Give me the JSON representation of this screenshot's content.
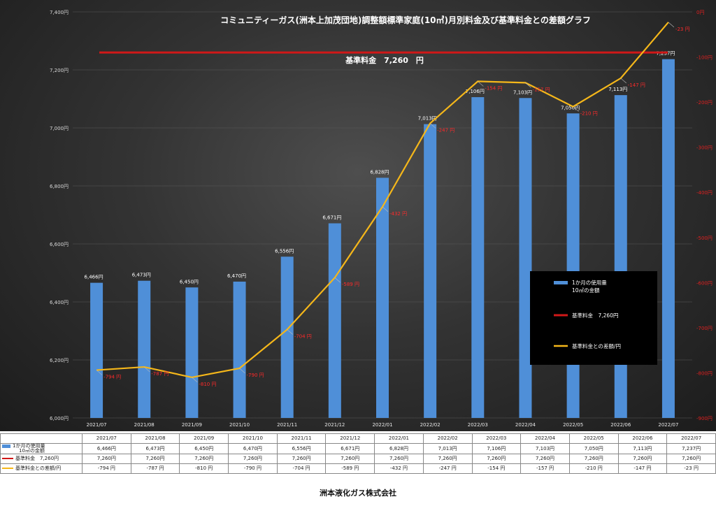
{
  "chart_data": {
    "type": "bar",
    "title": "コミュニティーガス(洲本上加茂団地)調整額標準家庭(10㎥)月別料金及び基準料金との差額グラフ",
    "categories": [
      "2021/07",
      "2021/08",
      "2021/09",
      "2021/10",
      "2021/11",
      "2021/12",
      "2022/01",
      "2022/02",
      "2022/03",
      "2022/04",
      "2022/05",
      "2022/06",
      "2022/07"
    ],
    "y_left": {
      "lim": [
        6000,
        7400
      ],
      "ticks": [
        "6,000円",
        "6,200円",
        "6,400円",
        "6,600円",
        "6,800円",
        "7,000円",
        "7,200円",
        "7,400円"
      ]
    },
    "y_right": {
      "lim": [
        -900,
        0
      ],
      "ticks": [
        "0円",
        "-100円",
        "-200円",
        "-300円",
        "-400円",
        "-500円",
        "-600円",
        "-700円",
        "-800円",
        "-900円"
      ]
    },
    "series": [
      {
        "name": "1か月の使用量\n10㎥の金額",
        "type": "bar",
        "color": "#4f8fd8",
        "values": [
          6466,
          6473,
          6450,
          6470,
          6556,
          6671,
          6828,
          7013,
          7106,
          7103,
          7050,
          7113,
          7237
        ],
        "labels": [
          "6,466円",
          "6,473円",
          "6,450円",
          "6,470円",
          "6,556円",
          "6,671円",
          "6,828円",
          "7,013円",
          "7,106円",
          "7,103円",
          "7,050円",
          "7,113円",
          "7,237円"
        ]
      },
      {
        "name": "基準料金　7,260円",
        "type": "line",
        "color": "#d01818",
        "values": [
          7260,
          7260,
          7260,
          7260,
          7260,
          7260,
          7260,
          7260,
          7260,
          7260,
          7260,
          7260,
          7260
        ],
        "labels": [
          "7,260円",
          "7,260円",
          "7,260円",
          "7,260円",
          "7,260円",
          "7,260円",
          "7,260円",
          "7,260円",
          "7,260円",
          "7,260円",
          "7,260円",
          "7,260円",
          "7,260円"
        ]
      },
      {
        "name": "基準料金との差額/円",
        "type": "line",
        "color": "#f5b71a",
        "axis": "right",
        "values": [
          -794,
          -787,
          -810,
          -790,
          -704,
          -589,
          -432,
          -247,
          -154,
          -157,
          -210,
          -147,
          -23
        ],
        "labels": [
          "-794 円",
          "-787 円",
          "-810 円",
          "-790 円",
          "-704 円",
          "-589 円",
          "-432 円",
          "-247 円",
          "-154 円",
          "-157 円",
          "-210 円",
          "-147 円",
          "-23 円"
        ]
      }
    ],
    "base_annotation": "基準料金　7,260　円",
    "legend": {
      "placement": "right-middle"
    }
  },
  "table": {
    "rows": [
      {
        "name": "1か月の使用量\n10㎥の金額",
        "swatch": "bar",
        "cells": [
          "6,466円",
          "6,473円",
          "6,450円",
          "6,470円",
          "6,556円",
          "6,671円",
          "6,828円",
          "7,013円",
          "7,106円",
          "7,103円",
          "7,050円",
          "7,113円",
          "7,237円"
        ]
      },
      {
        "name": "基準料金　7,260円",
        "swatch": "red",
        "cells": [
          "7,260円",
          "7,260円",
          "7,260円",
          "7,260円",
          "7,260円",
          "7,260円",
          "7,260円",
          "7,260円",
          "7,260円",
          "7,260円",
          "7,260円",
          "7,260円",
          "7,260円"
        ]
      },
      {
        "name": "基準料金との差額/円",
        "swatch": "yellow",
        "cells": [
          "-794 円",
          "-787 円",
          "-810 円",
          "-790 円",
          "-704 円",
          "-589 円",
          "-432 円",
          "-247 円",
          "-154 円",
          "-157 円",
          "-210 円",
          "-147 円",
          "-23 円"
        ]
      }
    ]
  },
  "footer": {
    "company": "洲本液化ガス株式会社"
  }
}
